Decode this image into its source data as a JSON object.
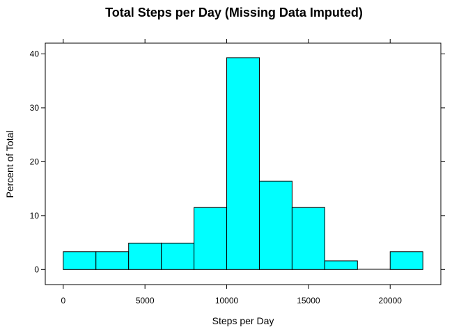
{
  "chart_data": {
    "type": "bar",
    "title": "Total Steps per Day (Missing Data Imputed)",
    "xlabel": "Steps per Day",
    "ylabel": "Percent of Total",
    "bin_edges": [
      0,
      2000,
      4000,
      6000,
      8000,
      10000,
      12000,
      14000,
      16000,
      18000,
      20000,
      22000
    ],
    "values": [
      3.3,
      3.3,
      4.9,
      4.9,
      11.5,
      39.3,
      16.4,
      11.5,
      1.6,
      0,
      3.3
    ],
    "xlim": [
      -1100,
      23100
    ],
    "ylim": [
      -2.8,
      42
    ],
    "xticks": [
      0,
      5000,
      10000,
      15000,
      20000
    ],
    "yticks": [
      0,
      10,
      20,
      30,
      40
    ],
    "fill": "#00ffff",
    "grid": false
  }
}
